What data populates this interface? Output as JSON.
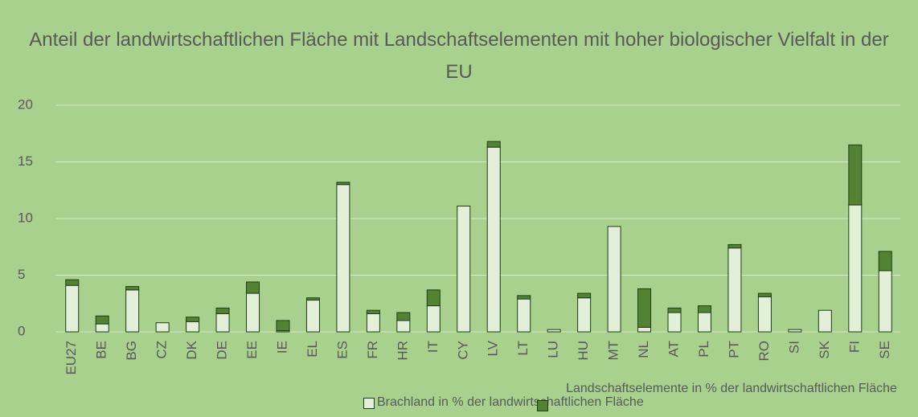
{
  "chart_data": {
    "type": "stacked_bar",
    "title": "Anteil der landwirtschaftlichen Fläche mit Landschaftselementen mit hoher biologischer Vielfalt in der EU",
    "categories": [
      "EU27",
      "BE",
      "BG",
      "CZ",
      "DK",
      "DE",
      "EE",
      "IE",
      "EL",
      "ES",
      "FR",
      "HR",
      "IT",
      "CY",
      "LV",
      "LT",
      "LU",
      "HU",
      "MT",
      "NL",
      "AT",
      "PL",
      "PT",
      "RO",
      "SI",
      "SK",
      "FI",
      "SE"
    ],
    "series": [
      {
        "name": "Brachland in % der landwirtschaftlichen Fläche",
        "color": "#e2f0d9",
        "values": [
          4.1,
          0.7,
          3.7,
          0.8,
          0.9,
          1.6,
          3.4,
          0.1,
          2.8,
          13.0,
          1.6,
          1.0,
          2.3,
          11.1,
          16.3,
          2.9,
          0.2,
          3.0,
          9.3,
          0.4,
          1.7,
          1.7,
          7.4,
          3.1,
          0.2,
          1.9,
          11.2,
          5.4
        ]
      },
      {
        "name": "Landschaftselemente in % der landwirtschaftlichen Fläche",
        "color": "#548235",
        "values": [
          0.5,
          0.7,
          0.3,
          0,
          0.4,
          0.5,
          1.0,
          0.9,
          0.2,
          0.2,
          0.3,
          0.7,
          1.4,
          0,
          0.5,
          0.3,
          0,
          0.4,
          0,
          3.4,
          0.4,
          0.6,
          0.3,
          0.3,
          0,
          0,
          5.3,
          1.7
        ]
      }
    ],
    "ylim": [
      0,
      20
    ],
    "yticks": [
      0,
      5,
      10,
      15,
      20
    ],
    "grid": true,
    "legend": "bottom"
  }
}
